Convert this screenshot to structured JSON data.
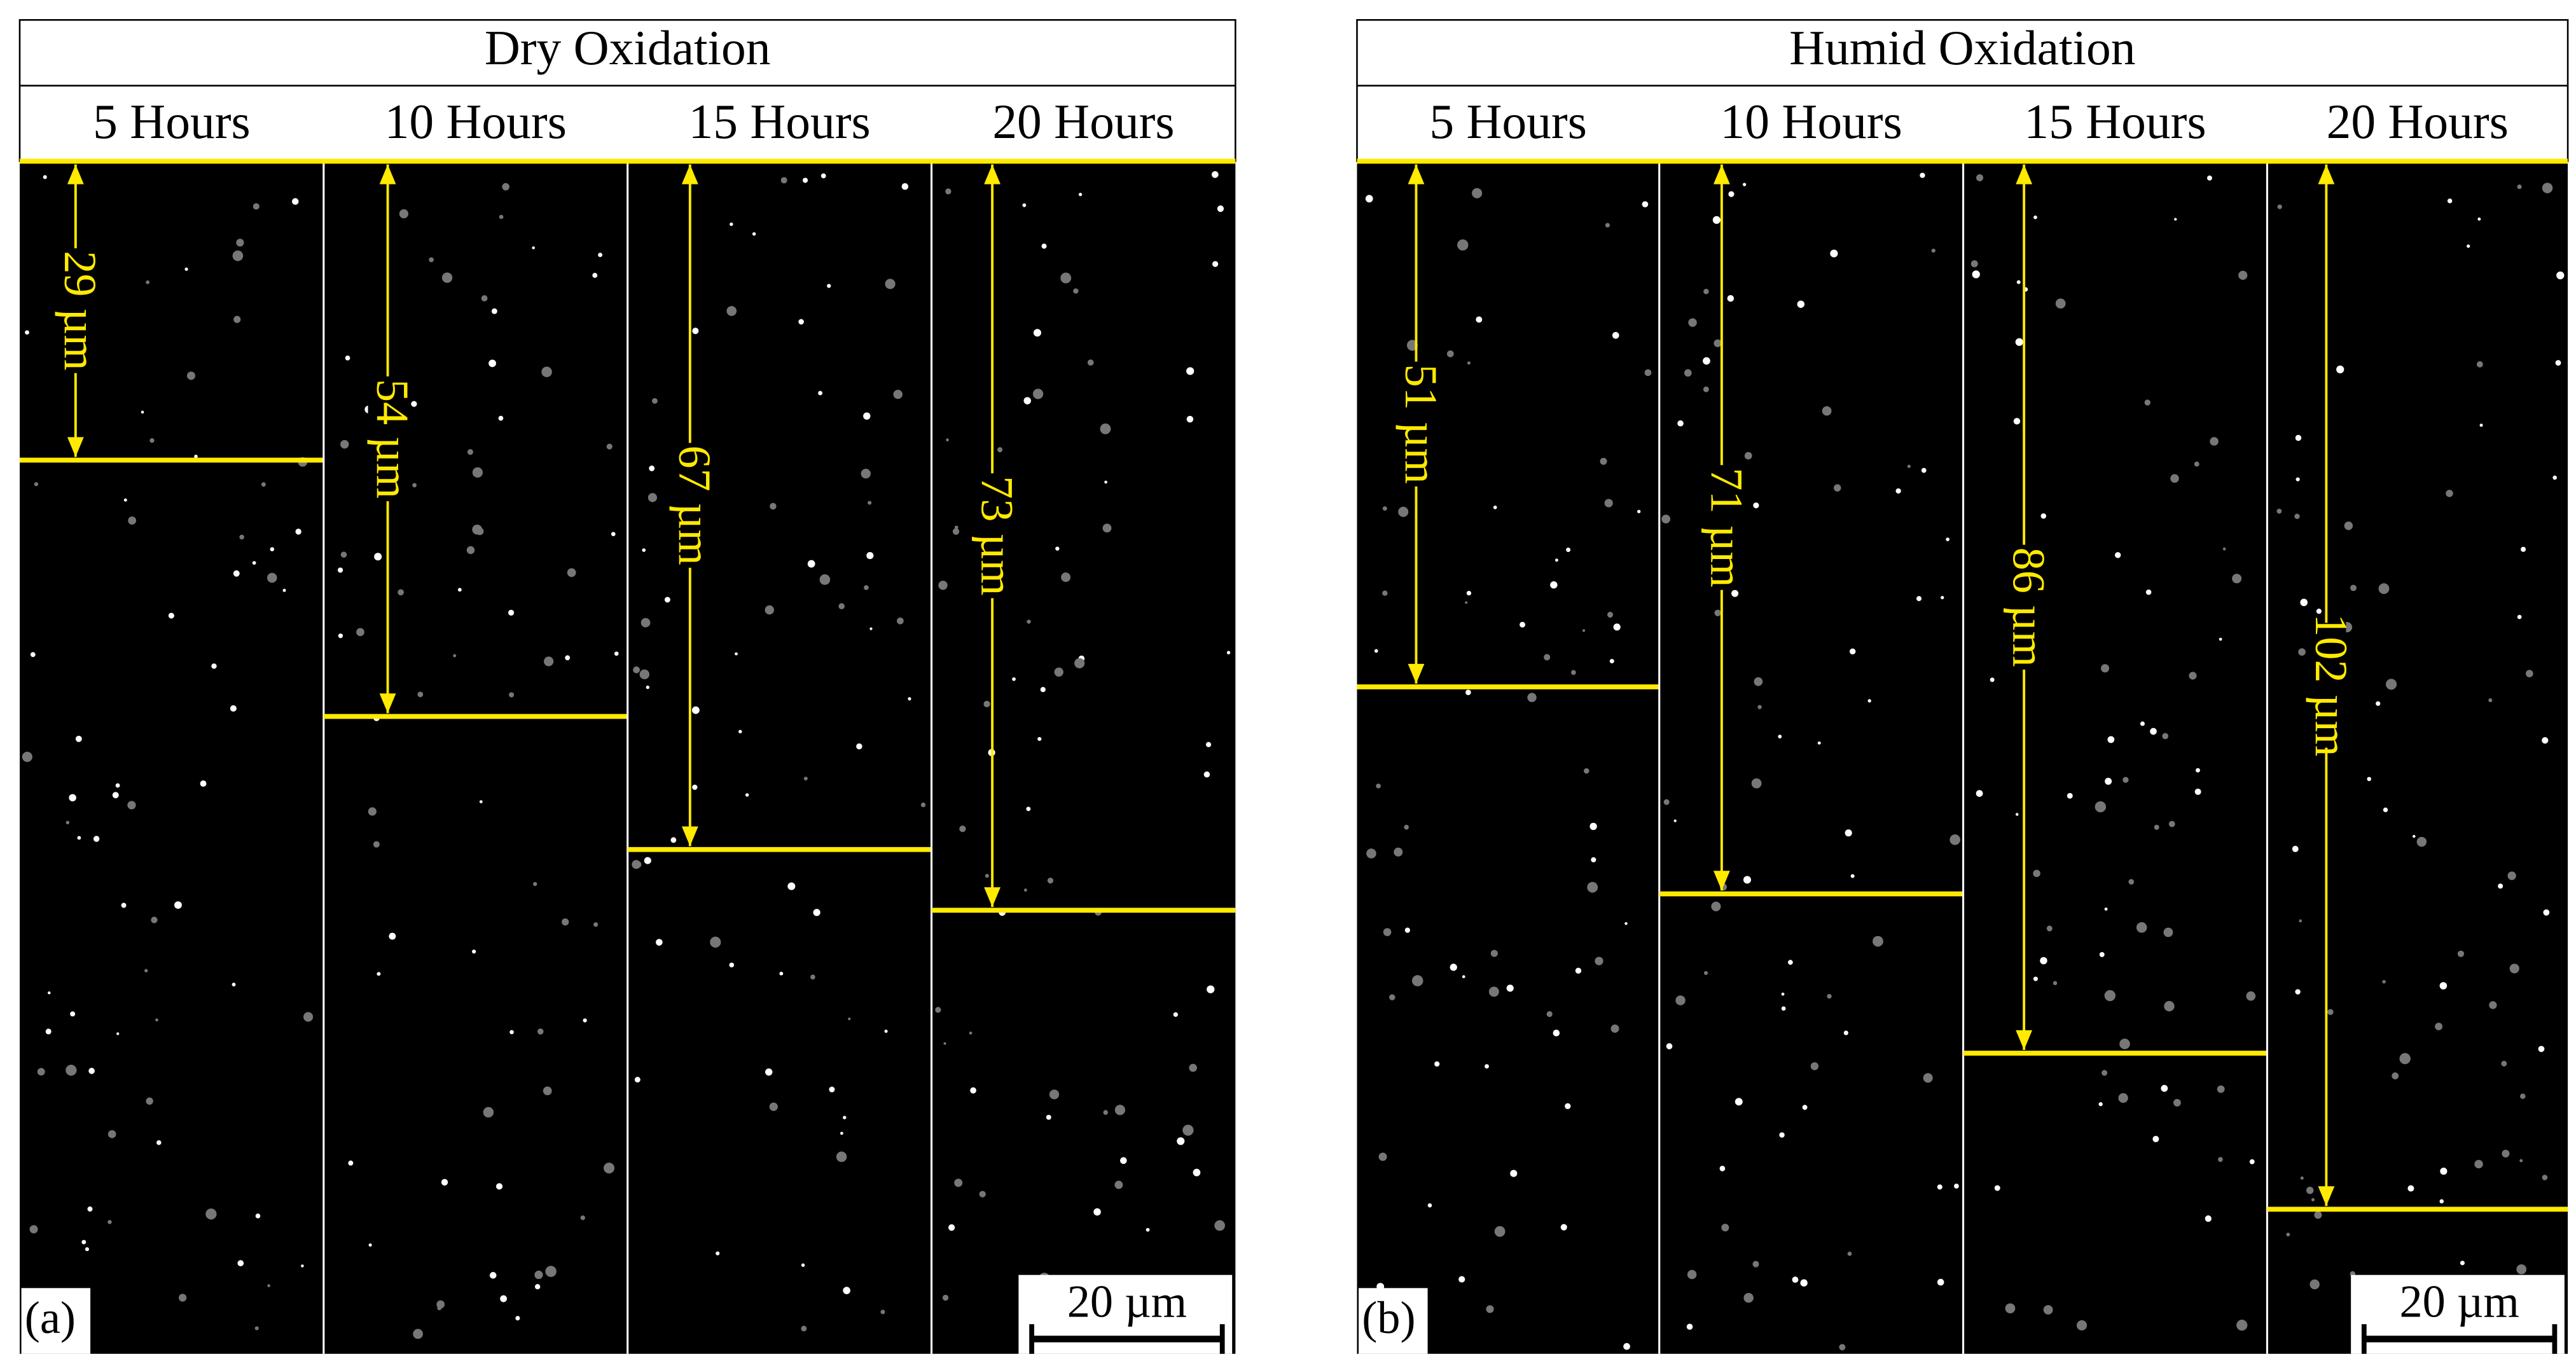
{
  "panels": [
    {
      "title": "Dry Oxidation",
      "label": "(a)",
      "scale_bar": "20 µm",
      "columns": [
        {
          "header": "5 Hours",
          "depth": "29 µm"
        },
        {
          "header": "10 Hours",
          "depth": "54 µm"
        },
        {
          "header": "15 Hours",
          "depth": "67 µm"
        },
        {
          "header": "20 Hours",
          "depth": "73 µm"
        }
      ]
    },
    {
      "title": "Humid Oxidation",
      "label": "(b)",
      "scale_bar": "20 µm",
      "columns": [
        {
          "header": "5 Hours",
          "depth": "51 µm"
        },
        {
          "header": "10 Hours",
          "depth": "71 µm"
        },
        {
          "header": "15 Hours",
          "depth": "86 µm"
        },
        {
          "header": "20 Hours",
          "depth": "102 µm"
        }
      ]
    }
  ]
}
